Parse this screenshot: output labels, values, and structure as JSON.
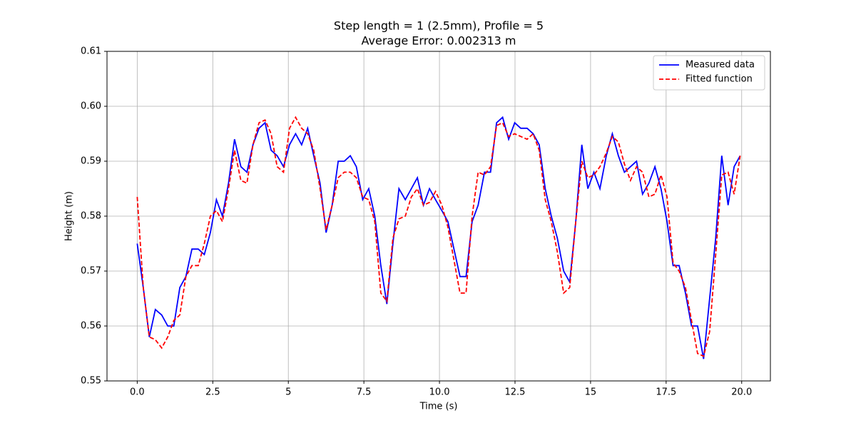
{
  "chart_data": {
    "type": "line",
    "title": "Step length = 1 (2.5mm), Profile = 5",
    "subtitle": "Average Error: 0.002313 m",
    "x_label": "Time (s)",
    "y_label": "Height (m)",
    "x": [
      0,
      0.2,
      0.4,
      0.6,
      0.81,
      1.01,
      1.21,
      1.41,
      1.61,
      1.81,
      2.02,
      2.22,
      2.42,
      2.62,
      2.82,
      3.02,
      3.22,
      3.43,
      3.63,
      3.83,
      4.03,
      4.23,
      4.43,
      4.63,
      4.84,
      5.04,
      5.24,
      5.44,
      5.64,
      5.84,
      6.05,
      6.25,
      6.45,
      6.65,
      6.85,
      7.05,
      7.25,
      7.46,
      7.66,
      7.86,
      8.06,
      8.26,
      8.46,
      8.66,
      8.87,
      9.07,
      9.27,
      9.47,
      9.67,
      9.87,
      10.08,
      10.28,
      10.48,
      10.68,
      10.88,
      11.08,
      11.28,
      11.49,
      11.69,
      11.89,
      12.09,
      12.29,
      12.49,
      12.69,
      12.9,
      13.1,
      13.3,
      13.5,
      13.7,
      13.9,
      14.11,
      14.31,
      14.51,
      14.71,
      14.91,
      15.11,
      15.31,
      15.52,
      15.72,
      15.92,
      16.12,
      16.32,
      16.52,
      16.72,
      16.93,
      17.13,
      17.33,
      17.53,
      17.73,
      17.93,
      18.14,
      18.34,
      18.54,
      18.74,
      18.94,
      19.14,
      19.34,
      19.55,
      19.75,
      19.95
    ],
    "series": [
      {
        "name": "Measured data",
        "color": "#0000ff",
        "dash": false,
        "values": [
          0.575,
          0.567,
          0.558,
          0.563,
          0.562,
          0.56,
          0.56,
          0.567,
          0.569,
          0.574,
          0.574,
          0.573,
          0.577,
          0.583,
          0.58,
          0.586,
          0.594,
          0.589,
          0.588,
          0.593,
          0.596,
          0.597,
          0.592,
          0.591,
          0.589,
          0.593,
          0.595,
          0.593,
          0.596,
          0.591,
          0.586,
          0.577,
          0.582,
          0.59,
          0.59,
          0.591,
          0.589,
          0.583,
          0.585,
          0.58,
          0.571,
          0.564,
          0.575,
          0.585,
          0.583,
          0.585,
          0.587,
          0.582,
          0.585,
          0.583,
          0.581,
          0.579,
          0.574,
          0.569,
          0.569,
          0.579,
          0.582,
          0.588,
          0.588,
          0.597,
          0.598,
          0.594,
          0.597,
          0.596,
          0.596,
          0.595,
          0.593,
          0.585,
          0.58,
          0.576,
          0.57,
          0.568,
          0.579,
          0.593,
          0.585,
          0.588,
          0.585,
          0.591,
          0.595,
          0.591,
          0.588,
          0.589,
          0.59,
          0.584,
          0.586,
          0.589,
          0.585,
          0.579,
          0.571,
          0.571,
          0.566,
          0.56,
          0.56,
          0.554,
          0.565,
          0.576,
          0.591,
          0.582,
          0.589,
          0.591
        ]
      },
      {
        "name": "Fitted function",
        "color": "#ff0000",
        "dash": true,
        "values": [
          0.5835,
          0.567,
          0.558,
          0.5575,
          0.556,
          0.558,
          0.561,
          0.562,
          0.569,
          0.571,
          0.571,
          0.575,
          0.58,
          0.581,
          0.579,
          0.585,
          0.592,
          0.5865,
          0.586,
          0.593,
          0.597,
          0.5975,
          0.595,
          0.589,
          0.588,
          0.596,
          0.598,
          0.596,
          0.595,
          0.592,
          0.585,
          0.5775,
          0.582,
          0.587,
          0.588,
          0.588,
          0.587,
          0.5835,
          0.583,
          0.579,
          0.566,
          0.5645,
          0.576,
          0.5795,
          0.58,
          0.5835,
          0.585,
          0.582,
          0.5825,
          0.5845,
          0.582,
          0.578,
          0.572,
          0.566,
          0.566,
          0.58,
          0.588,
          0.5875,
          0.589,
          0.5965,
          0.597,
          0.5945,
          0.595,
          0.5945,
          0.594,
          0.595,
          0.592,
          0.583,
          0.579,
          0.5735,
          0.566,
          0.567,
          0.579,
          0.59,
          0.587,
          0.5875,
          0.589,
          0.5915,
          0.5945,
          0.5935,
          0.5895,
          0.5865,
          0.589,
          0.588,
          0.5835,
          0.584,
          0.5875,
          0.5835,
          0.5715,
          0.57,
          0.567,
          0.561,
          0.555,
          0.5545,
          0.559,
          0.573,
          0.5875,
          0.588,
          0.584,
          0.591
        ]
      }
    ],
    "xlim": [
      -1.0,
      20.95
    ],
    "ylim": [
      0.55,
      0.61
    ],
    "xticks": [
      {
        "value": 0,
        "label": "0.0"
      },
      2.5,
      5.0,
      7.5,
      {
        "value": 10,
        "label": "10.0"
      },
      12.5,
      15.0,
      17.5,
      {
        "value": 20,
        "label": "20.0"
      }
    ],
    "yticks": [
      0.55,
      0.56,
      0.57,
      0.58,
      0.59,
      {
        "value": 0.6,
        "label": "0.60"
      },
      0.61
    ],
    "grid": true,
    "legend": "upper-right"
  }
}
